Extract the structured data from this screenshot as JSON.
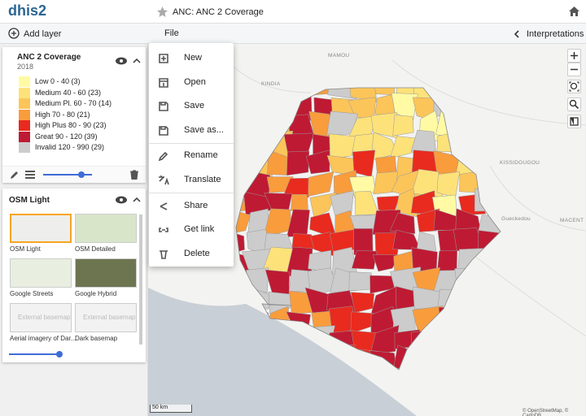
{
  "header": {
    "logo": "dhis2",
    "title": "ANC: ANC 2 Coverage"
  },
  "toolbar": {
    "add_layer": "Add layer",
    "file": "File",
    "interpretations": "Interpretations"
  },
  "layer": {
    "name": "ANC 2 Coverage",
    "period": "2018",
    "legend": [
      {
        "label": "Low 0 - 40 (3)",
        "color": "#fffaa3"
      },
      {
        "label": "Medium 40 - 60 (23)",
        "color": "#fde27a"
      },
      {
        "label": "Medium Pl. 60 - 70 (14)",
        "color": "#fcc55a"
      },
      {
        "label": "High 70 - 80 (21)",
        "color": "#f99c3c"
      },
      {
        "label": "High Plus 80 - 90 (23)",
        "color": "#e92a1f"
      },
      {
        "label": "Great 90 - 120 (39)",
        "color": "#bf1a33"
      },
      {
        "label": "Invalid 120 - 990 (29)",
        "color": "#cccccc"
      }
    ]
  },
  "basemap": {
    "name": "OSM Light",
    "options": [
      "OSM Light",
      "OSM Detailed",
      "Google Streets",
      "Google Hybrid",
      "Aerial imagery of Dar...",
      "Dark basemap"
    ],
    "external": "External basemap"
  },
  "menu": [
    "New",
    "Open",
    "Save",
    "Save as...",
    "Rename",
    "Translate",
    "Share",
    "Get link",
    "Delete"
  ],
  "map": {
    "places": [
      "MAMOU",
      "KINDIA",
      "KISSIDOUGOU",
      "Gueckedou",
      "MACENT"
    ],
    "scale": "50 km",
    "attribution": "© OpenStreetMap, © CartoDB"
  }
}
